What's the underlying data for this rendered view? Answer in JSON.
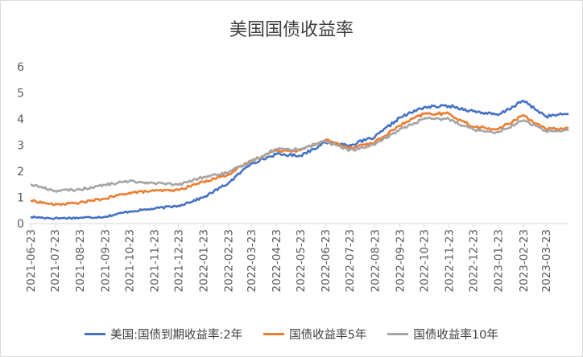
{
  "chart_data": {
    "type": "line",
    "title": "美国国债收益率",
    "xlabel": "",
    "ylabel": "",
    "ylim": [
      0,
      6
    ],
    "yticks": [
      "0",
      "1",
      "2",
      "3",
      "4",
      "5",
      "6"
    ],
    "grid": false,
    "legend": "bottom",
    "x_tick_labels": [
      "2021-06-23",
      "2021-07-23",
      "2021-08-23",
      "2021-09-23",
      "2021-10-23",
      "2021-11-23",
      "2021-12-23",
      "2022-01-23",
      "2022-02-23",
      "2022-03-23",
      "2022-04-23",
      "2022-05-23",
      "2022-06-23",
      "2022-07-23",
      "2022-08-23",
      "2022-09-23",
      "2022-10-23",
      "2022-11-23",
      "2022-12-23",
      "2023-01-23",
      "2023-02-23",
      "2023-03-23"
    ],
    "x": [
      "2021-06-23",
      "2021-07-23",
      "2021-08-23",
      "2021-09-23",
      "2021-10-23",
      "2021-11-23",
      "2021-12-23",
      "2022-01-23",
      "2022-02-23",
      "2022-03-23",
      "2022-04-23",
      "2022-05-23",
      "2022-06-23",
      "2022-07-23",
      "2022-08-23",
      "2022-09-23",
      "2022-10-23",
      "2022-11-23",
      "2022-12-23",
      "2023-01-23",
      "2023-02-23",
      "2023-03-23",
      "2023-04-20"
    ],
    "series": [
      {
        "name": "美国:国债到期收益率:2年",
        "color": "#4472C4",
        "values": [
          0.25,
          0.2,
          0.22,
          0.26,
          0.46,
          0.57,
          0.68,
          1.0,
          1.55,
          2.3,
          2.65,
          2.6,
          3.1,
          3.0,
          3.3,
          4.05,
          4.45,
          4.5,
          4.3,
          4.15,
          4.7,
          4.1,
          4.2
        ]
      },
      {
        "name": "国债收益率5年",
        "color": "#ED7D31",
        "values": [
          0.88,
          0.72,
          0.8,
          0.95,
          1.18,
          1.25,
          1.28,
          1.6,
          1.88,
          2.4,
          2.8,
          2.8,
          3.2,
          2.9,
          3.1,
          3.75,
          4.2,
          4.2,
          3.7,
          3.6,
          4.15,
          3.6,
          3.65
        ]
      },
      {
        "name": "国债收益率10年",
        "color": "#A5A5A5",
        "values": [
          1.5,
          1.25,
          1.3,
          1.48,
          1.62,
          1.55,
          1.48,
          1.78,
          1.95,
          2.38,
          2.85,
          2.85,
          3.15,
          2.8,
          3.0,
          3.6,
          4.0,
          4.0,
          3.6,
          3.5,
          3.95,
          3.55,
          3.55
        ]
      }
    ]
  }
}
